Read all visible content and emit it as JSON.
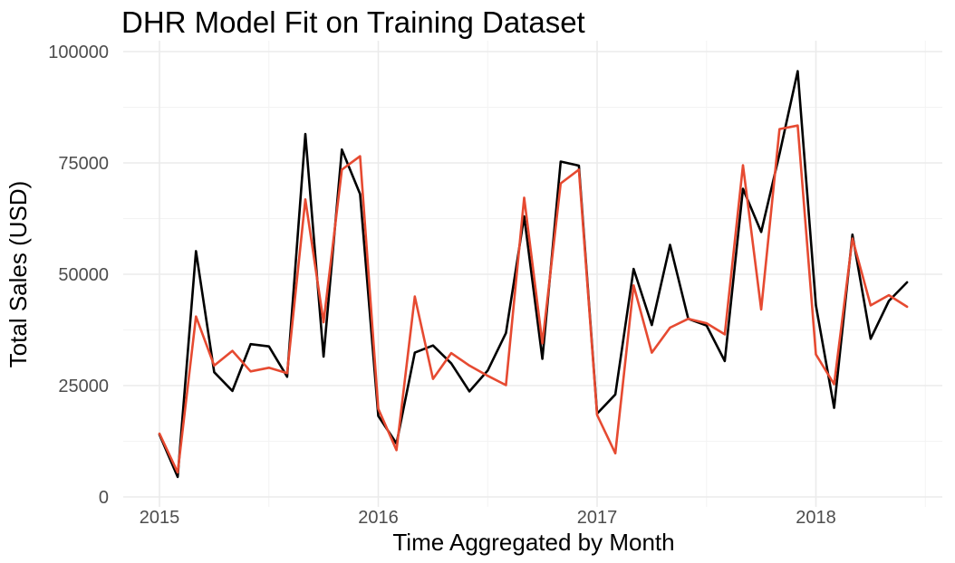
{
  "chart_data": {
    "type": "line",
    "title": "DHR Model Fit on Training Dataset",
    "xlabel": "Time Aggregated by Month",
    "ylabel": "Total Sales (USD)",
    "x_ticks": [
      "2015",
      "2016",
      "2017",
      "2018"
    ],
    "y_ticks": [
      "0",
      "25000",
      "50000",
      "75000",
      "100000"
    ],
    "x_range": [
      "2014-11",
      "2018-08"
    ],
    "ylim": [
      0,
      100000
    ],
    "grid": true,
    "legend": "none",
    "x": [
      "2015-01",
      "2015-02",
      "2015-03",
      "2015-04",
      "2015-05",
      "2015-06",
      "2015-07",
      "2015-08",
      "2015-09",
      "2015-10",
      "2015-11",
      "2015-12",
      "2016-01",
      "2016-02",
      "2016-03",
      "2016-04",
      "2016-05",
      "2016-06",
      "2016-07",
      "2016-08",
      "2016-09",
      "2016-10",
      "2016-11",
      "2016-12",
      "2017-01",
      "2017-02",
      "2017-03",
      "2017-04",
      "2017-05",
      "2017-06",
      "2017-07",
      "2017-08",
      "2017-09",
      "2017-10",
      "2017-11",
      "2017-12",
      "2018-01",
      "2018-02",
      "2018-03",
      "2018-04",
      "2018-05",
      "2018-06"
    ],
    "series": [
      {
        "color": "#000000",
        "values": [
          14000,
          4500,
          55200,
          28000,
          23800,
          34300,
          33800,
          27000,
          81500,
          31500,
          78000,
          68000,
          18200,
          12000,
          32400,
          34000,
          30000,
          23700,
          28400,
          36800,
          63000,
          31000,
          75300,
          74400,
          18700,
          23000,
          51200,
          38600,
          56600,
          40000,
          38500,
          30500,
          69200,
          59500,
          77000,
          95600,
          43000,
          20000,
          58900,
          35500,
          44000,
          48200
        ]
      },
      {
        "color": "#e64a31",
        "values": [
          14200,
          5500,
          40500,
          29500,
          32800,
          28200,
          29000,
          27800,
          66800,
          39200,
          73500,
          76500,
          19800,
          10500,
          45000,
          26500,
          32300,
          29500,
          27200,
          25100,
          67200,
          34500,
          70400,
          73500,
          18400,
          9800,
          47500,
          32400,
          38000,
          40000,
          39000,
          36500,
          74500,
          42100,
          82600,
          83400,
          32000,
          25300,
          58000,
          43000,
          45300,
          42700
        ]
      }
    ]
  }
}
